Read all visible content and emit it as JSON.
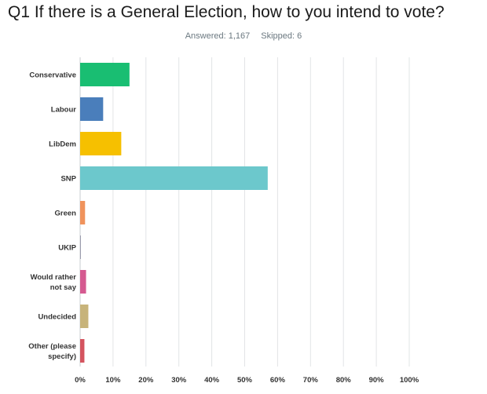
{
  "title": "Q1 If there is a General Election, how to you intend to vote?",
  "stats": {
    "answered": "Answered: 1,167",
    "skipped": "Skipped: 6"
  },
  "chart_data": {
    "type": "bar",
    "orientation": "horizontal",
    "categories": [
      [
        "Conservative"
      ],
      [
        "Labour"
      ],
      [
        "LibDem"
      ],
      [
        "SNP"
      ],
      [
        "Green"
      ],
      [
        "UKIP"
      ],
      [
        "Would rather",
        "not say"
      ],
      [
        "Undecided"
      ],
      [
        "Other (please",
        "specify)"
      ]
    ],
    "values": [
      15,
      7,
      12.5,
      57,
      1.5,
      0.2,
      1.8,
      2.5,
      1.3
    ],
    "colors": [
      "#19be72",
      "#4a7ebb",
      "#f6c000",
      "#6cc8cc",
      "#f0935c",
      "#8a8a9e",
      "#d55a90",
      "#c7b37a",
      "#d4545f"
    ],
    "xlim": [
      0,
      100
    ],
    "xticks": [
      "0%",
      "10%",
      "20%",
      "30%",
      "40%",
      "50%",
      "60%",
      "70%",
      "80%",
      "90%",
      "100%"
    ],
    "grid": true
  }
}
